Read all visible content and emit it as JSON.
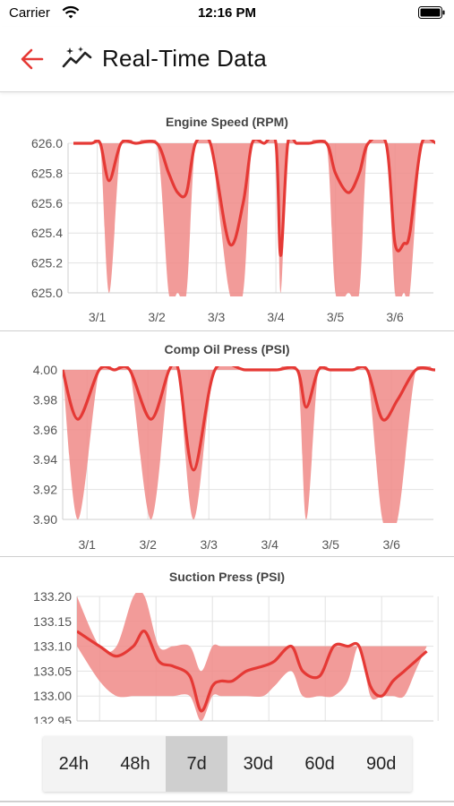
{
  "status": {
    "carrier": "Carrier",
    "time": "12:16 PM"
  },
  "header": {
    "title": "Real-Time Data",
    "back_icon": "arrow-left-icon",
    "title_icon": "sparkline-icon"
  },
  "colors": {
    "accent": "#e53935",
    "band": "#f08a87"
  },
  "time_ranges": [
    {
      "label": "24h",
      "active": false
    },
    {
      "label": "48h",
      "active": false
    },
    {
      "label": "7d",
      "active": true
    },
    {
      "label": "30d",
      "active": false
    },
    {
      "label": "60d",
      "active": false
    },
    {
      "label": "90d",
      "active": false
    }
  ],
  "chart_data": [
    {
      "type": "line",
      "title": "Engine Speed (RPM)",
      "ylim": [
        625.0,
        626.0
      ],
      "yticks": [
        "626.0",
        "625.8",
        "625.6",
        "625.4",
        "625.2",
        "625.0"
      ],
      "xticks": [
        "3/1",
        "3/2",
        "3/3",
        "3/4",
        "3/5",
        "3/6"
      ],
      "x": [
        0.0,
        0.3,
        0.45,
        0.6,
        0.8,
        1.05,
        1.4,
        1.6,
        1.75,
        1.9,
        2.05,
        2.3,
        2.62,
        2.85,
        3.0,
        3.2,
        3.4,
        3.48,
        3.6,
        3.75,
        3.95,
        4.25,
        4.4,
        4.62,
        4.8,
        4.95,
        5.25,
        5.4,
        5.55,
        5.65,
        5.85,
        6.1,
        6.3
      ],
      "values": [
        626.0,
        626.0,
        626.0,
        625.75,
        626.0,
        626.0,
        626.0,
        625.8,
        625.67,
        625.67,
        626.0,
        626.0,
        625.33,
        625.6,
        626.0,
        626.0,
        626.0,
        625.25,
        626.0,
        626.0,
        626.0,
        626.0,
        625.8,
        625.67,
        625.8,
        626.0,
        626.0,
        625.33,
        625.33,
        625.4,
        626.0,
        626.0,
        626.0
      ],
      "band_min": [
        626.0,
        626.0,
        626.0,
        625.0,
        626.0,
        626.0,
        626.0,
        625.0,
        625.0,
        625.0,
        626.0,
        626.0,
        625.0,
        625.0,
        626.0,
        626.0,
        626.0,
        625.0,
        626.0,
        626.0,
        626.0,
        626.0,
        625.0,
        625.0,
        625.0,
        626.0,
        626.0,
        625.0,
        625.0,
        625.0,
        626.0,
        626.0,
        626.0
      ],
      "grid": true
    },
    {
      "type": "line",
      "title": "Comp Oil Press (PSI)",
      "ylim": [
        3.9,
        4.0
      ],
      "yticks": [
        "4.00",
        "3.98",
        "3.96",
        "3.94",
        "3.92",
        "3.90"
      ],
      "xticks": [
        "3/1",
        "3/2",
        "3/3",
        "3/4",
        "3/5",
        "3/6"
      ],
      "x": [
        0.0,
        0.25,
        0.6,
        0.85,
        1.1,
        1.45,
        1.75,
        1.9,
        2.15,
        2.5,
        3.0,
        3.5,
        3.85,
        4.0,
        4.2,
        4.4,
        4.75,
        5.0,
        5.25,
        5.5,
        5.8,
        6.1,
        6.2
      ],
      "values": [
        4.0,
        3.967,
        4.0,
        4.0,
        4.0,
        3.967,
        4.0,
        4.0,
        3.933,
        4.0,
        4.0,
        4.0,
        4.0,
        3.975,
        4.0,
        4.0,
        4.0,
        4.0,
        3.967,
        3.98,
        4.0,
        4.0,
        4.0
      ],
      "band_min": [
        4.0,
        3.9,
        4.0,
        4.0,
        4.0,
        3.9,
        4.0,
        4.0,
        3.9,
        4.0,
        4.0,
        4.0,
        4.0,
        3.9,
        4.0,
        4.0,
        4.0,
        4.0,
        3.9,
        3.9,
        4.0,
        4.0,
        4.0
      ],
      "grid": true
    },
    {
      "type": "line",
      "title": "Suction Press (PSI)",
      "ylim": [
        132.95,
        133.2
      ],
      "yticks": [
        "133.20",
        "133.15",
        "133.10",
        "133.05",
        "133.00",
        "132.95"
      ],
      "x": [
        0.0,
        0.4,
        0.7,
        1.0,
        1.2,
        1.45,
        1.7,
        2.0,
        2.2,
        2.4,
        2.55,
        2.75,
        3.0,
        3.3,
        3.5,
        3.8,
        4.0,
        4.3,
        4.55,
        4.8,
        5.0,
        5.2,
        5.4,
        5.6,
        5.8,
        6.0,
        6.2
      ],
      "values": [
        133.13,
        133.1,
        133.08,
        133.1,
        133.13,
        133.07,
        133.06,
        133.04,
        132.97,
        133.02,
        133.03,
        133.03,
        133.05,
        133.06,
        133.07,
        133.1,
        133.05,
        133.04,
        133.1,
        133.1,
        133.1,
        133.02,
        133.0,
        133.03,
        133.05,
        133.07,
        133.09
      ],
      "band_min": [
        133.1,
        133.03,
        133.0,
        133.0,
        133.0,
        133.0,
        133.0,
        133.0,
        132.95,
        133.0,
        133.0,
        133.0,
        133.0,
        133.0,
        133.02,
        133.05,
        133.0,
        133.0,
        133.0,
        133.03,
        133.1,
        133.0,
        133.0,
        133.0,
        133.0,
        133.05,
        133.1
      ],
      "band_max": [
        133.2,
        133.1,
        133.1,
        133.2,
        133.2,
        133.1,
        133.1,
        133.1,
        133.05,
        133.1,
        133.1,
        133.1,
        133.1,
        133.1,
        133.1,
        133.1,
        133.1,
        133.1,
        133.1,
        133.1,
        133.1,
        133.1,
        133.1,
        133.1,
        133.1,
        133.1,
        133.1
      ],
      "grid": true
    }
  ]
}
